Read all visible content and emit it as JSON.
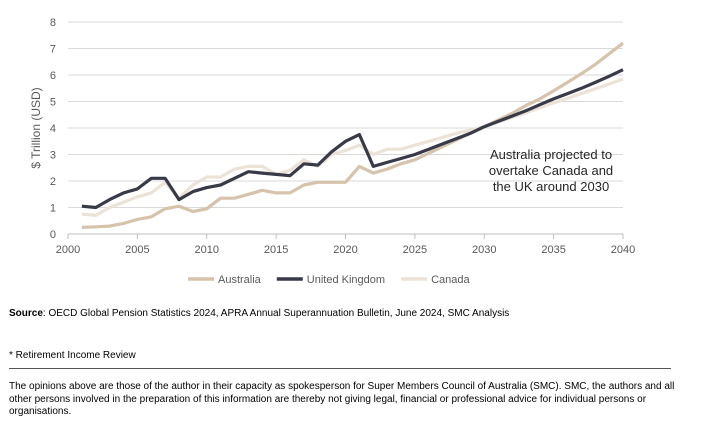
{
  "chart_data": {
    "type": "line",
    "title": "",
    "xlabel": "",
    "ylabel": "$ Trillion (USD)",
    "xlim": [
      2000,
      2040
    ],
    "ylim": [
      0,
      8
    ],
    "xticks": [
      2000,
      2005,
      2010,
      2015,
      2020,
      2025,
      2030,
      2035,
      2040
    ],
    "yticks": [
      0,
      1,
      2,
      3,
      4,
      5,
      6,
      7,
      8
    ],
    "grid": "horizontal",
    "legend": "bottom",
    "annotation": [
      "Australia projected to",
      "overtake Canada and",
      "the UK around 2030"
    ],
    "x": [
      2001,
      2002,
      2003,
      2004,
      2005,
      2006,
      2007,
      2008,
      2009,
      2010,
      2011,
      2012,
      2013,
      2014,
      2015,
      2016,
      2017,
      2018,
      2019,
      2020,
      2021,
      2022,
      2023,
      2024,
      2025,
      2026,
      2027,
      2028,
      2029,
      2030,
      2031,
      2032,
      2033,
      2034,
      2035,
      2036,
      2037,
      2038,
      2039,
      2040
    ],
    "series": [
      {
        "name": "Australia",
        "color": "#d5c3ac",
        "values": [
          0.25,
          0.27,
          0.3,
          0.4,
          0.55,
          0.65,
          0.95,
          1.05,
          0.85,
          0.95,
          1.35,
          1.35,
          1.5,
          1.65,
          1.55,
          1.55,
          1.85,
          1.95,
          1.95,
          1.95,
          2.55,
          2.3,
          2.45,
          2.65,
          2.8,
          3.05,
          3.3,
          3.55,
          3.8,
          4.05,
          4.3,
          4.55,
          4.85,
          5.1,
          5.4,
          5.72,
          6.05,
          6.4,
          6.8,
          7.2
        ]
      },
      {
        "name": "United Kingdom",
        "color": "#383a47",
        "values": [
          1.05,
          1.0,
          1.3,
          1.55,
          1.7,
          2.1,
          2.1,
          1.3,
          1.6,
          1.75,
          1.85,
          2.1,
          2.35,
          2.3,
          2.25,
          2.2,
          2.65,
          2.6,
          3.1,
          3.5,
          3.75,
          2.55,
          2.7,
          2.85,
          3.0,
          3.2,
          3.4,
          3.6,
          3.8,
          4.05,
          4.25,
          4.45,
          4.65,
          4.88,
          5.1,
          5.3,
          5.5,
          5.72,
          5.95,
          6.2
        ]
      },
      {
        "name": "Canada",
        "color": "#ece3d8",
        "values": [
          0.75,
          0.7,
          1.0,
          1.2,
          1.4,
          1.55,
          1.95,
          1.35,
          1.85,
          2.15,
          2.15,
          2.45,
          2.55,
          2.55,
          2.25,
          2.4,
          2.8,
          2.55,
          3.0,
          3.15,
          3.35,
          3.0,
          3.2,
          3.2,
          3.35,
          3.5,
          3.65,
          3.8,
          3.92,
          4.05,
          4.22,
          4.4,
          4.58,
          4.76,
          4.95,
          5.12,
          5.3,
          5.48,
          5.66,
          5.85
        ]
      }
    ]
  },
  "footer": {
    "source_label": "Source",
    "source_text": ": OECD Global Pension Statistics 2024, APRA Annual Superannuation Bulletin, June 2024, SMC Analysis",
    "note": "* Retirement Income Review",
    "disclaimer": "The opinions above are those of the author in their capacity as spokesperson for Super Members Council of Australia (SMC). SMC, the authors and all other persons involved in the preparation of this information are thereby not giving legal, financial or professional advice for individual persons or organisations."
  }
}
